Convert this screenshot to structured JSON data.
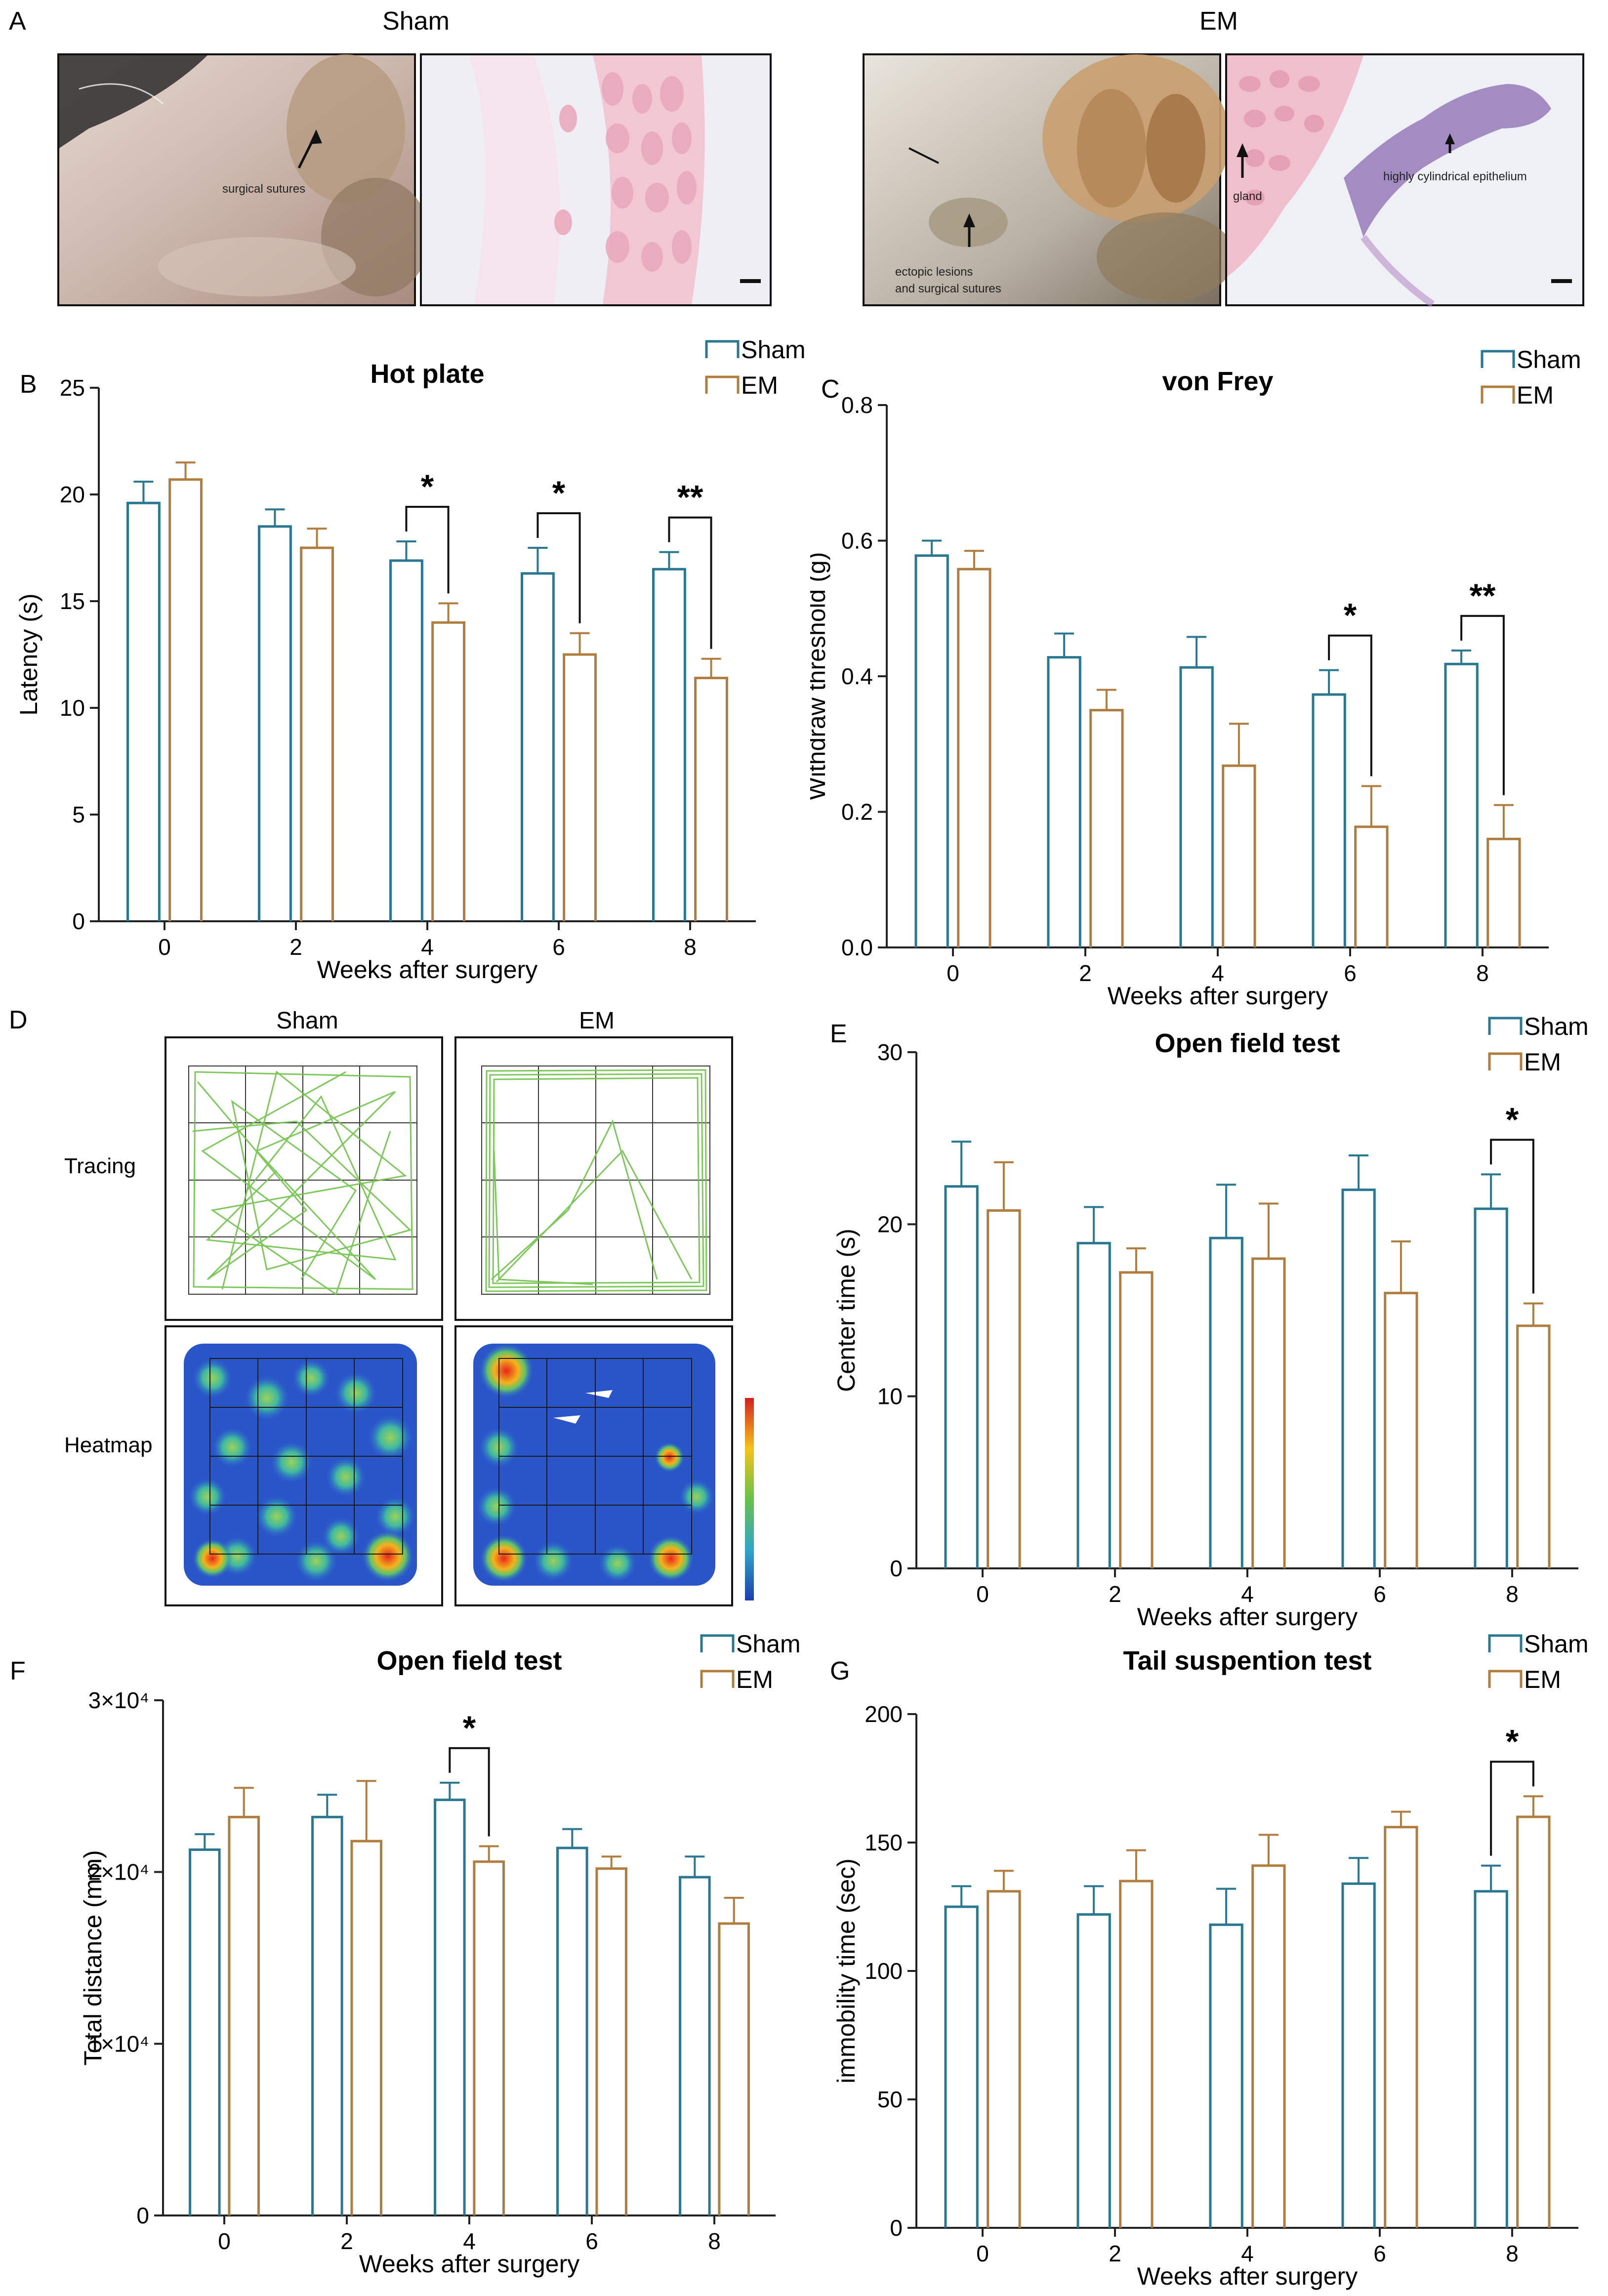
{
  "colors": {
    "sham": "#2a7790",
    "em": "#b07d3f",
    "axis": "#222222",
    "track": "#6fc24a"
  },
  "panelA": {
    "letter": "A",
    "sham_title": "Sham",
    "em_title": "EM",
    "sham_photo_label": "surgical sutures",
    "em_photo_label_1": "ectopic lesions",
    "em_photo_label_2": "and surgical sutures",
    "em_histo_gland": "gland",
    "em_histo_epithelium": "highly cylindrical epithelium"
  },
  "panelD": {
    "letter": "D",
    "col_sham": "Sham",
    "col_em": "EM",
    "row_tracing": "Tracing",
    "row_heatmap": "Heatmap"
  },
  "chart_data": [
    {
      "id": "B",
      "letter": "B",
      "type": "bar",
      "title": "Hot plate",
      "xlabel": "Weeks after surgery",
      "ylabel": "Latency (s)",
      "categories": [
        "0",
        "2",
        "4",
        "6",
        "8"
      ],
      "ylim": [
        0,
        25
      ],
      "yticks": [
        0,
        5,
        10,
        15,
        20,
        25
      ],
      "ytick_labels": [
        "0",
        "5",
        "10",
        "15",
        "20",
        "25"
      ],
      "legend": [
        "Sham",
        "EM"
      ],
      "series": [
        {
          "name": "Sham",
          "values": [
            19.6,
            18.5,
            16.9,
            16.3,
            16.5
          ],
          "errors": [
            1.0,
            0.8,
            0.9,
            1.2,
            0.8
          ]
        },
        {
          "name": "EM",
          "values": [
            20.7,
            17.5,
            14.0,
            12.5,
            11.4
          ],
          "errors": [
            0.8,
            0.9,
            0.9,
            1.0,
            0.9
          ]
        }
      ],
      "significance": [
        {
          "category_index": 2,
          "label": "*"
        },
        {
          "category_index": 3,
          "label": "*"
        },
        {
          "category_index": 4,
          "label": "**"
        }
      ]
    },
    {
      "id": "C",
      "letter": "C",
      "type": "bar",
      "title": "von Frey",
      "xlabel": "Weeks after surgery",
      "ylabel": "Withdraw threshold (g)",
      "categories": [
        "0",
        "2",
        "4",
        "6",
        "8"
      ],
      "ylim": [
        0,
        0.8
      ],
      "yticks": [
        0,
        0.2,
        0.4,
        0.6,
        0.8
      ],
      "ytick_labels": [
        "0.0",
        "0.2",
        "0.4",
        "0.6",
        "0.8"
      ],
      "legend": [
        "Sham",
        "EM"
      ],
      "series": [
        {
          "name": "Sham",
          "values": [
            0.578,
            0.428,
            0.413,
            0.373,
            0.418
          ],
          "errors": [
            0.022,
            0.035,
            0.045,
            0.036,
            0.02
          ]
        },
        {
          "name": "EM",
          "values": [
            0.558,
            0.35,
            0.268,
            0.178,
            0.16
          ],
          "errors": [
            0.027,
            0.03,
            0.062,
            0.06,
            0.05
          ]
        }
      ],
      "significance": [
        {
          "category_index": 3,
          "label": "*"
        },
        {
          "category_index": 4,
          "label": "**"
        }
      ]
    },
    {
      "id": "E",
      "letter": "E",
      "type": "bar",
      "title": "Open field test",
      "xlabel": "Weeks after surgery",
      "ylabel": "Center time (s)",
      "categories": [
        "0",
        "2",
        "4",
        "6",
        "8"
      ],
      "ylim": [
        0,
        30
      ],
      "yticks": [
        0,
        10,
        20,
        30
      ],
      "ytick_labels": [
        "0",
        "10",
        "20",
        "30"
      ],
      "legend": [
        "Sham",
        "EM"
      ],
      "series": [
        {
          "name": "Sham",
          "values": [
            22.2,
            18.9,
            19.2,
            22.0,
            20.9
          ],
          "errors": [
            2.6,
            2.1,
            3.1,
            2.0,
            2.0
          ]
        },
        {
          "name": "EM",
          "values": [
            20.8,
            17.2,
            18.0,
            16.0,
            14.1
          ],
          "errors": [
            2.8,
            1.4,
            3.2,
            3.0,
            1.3
          ]
        }
      ],
      "significance": [
        {
          "category_index": 4,
          "label": "*"
        }
      ]
    },
    {
      "id": "F",
      "letter": "F",
      "type": "bar",
      "title": "Open field test",
      "xlabel": "Weeks after surgery",
      "ylabel": "Total distance (mm)",
      "categories": [
        "0",
        "2",
        "4",
        "6",
        "8"
      ],
      "ylim": [
        0,
        30000
      ],
      "yticks": [
        0,
        10000,
        20000,
        30000
      ],
      "ytick_labels": [
        "0",
        "1×10⁴",
        "2×10⁴",
        "3×10⁴"
      ],
      "legend": [
        "Sham",
        "EM"
      ],
      "series": [
        {
          "name": "Sham",
          "values": [
            21300,
            23200,
            24200,
            21400,
            19700
          ],
          "errors": [
            900,
            1300,
            1000,
            1100,
            1200
          ]
        },
        {
          "name": "EM",
          "values": [
            23200,
            21800,
            20600,
            20200,
            17000
          ],
          "errors": [
            1700,
            3500,
            900,
            700,
            1500
          ]
        }
      ],
      "significance": [
        {
          "category_index": 2,
          "label": "*"
        }
      ]
    },
    {
      "id": "G",
      "letter": "G",
      "type": "bar",
      "title": "Tail suspention test",
      "xlabel": "Weeks after surgery",
      "ylabel": "immobility time (sec)",
      "categories": [
        "0",
        "2",
        "4",
        "6",
        "8"
      ],
      "ylim": [
        0,
        200
      ],
      "yticks": [
        0,
        50,
        100,
        150,
        200
      ],
      "ytick_labels": [
        "0",
        "50",
        "100",
        "150",
        "200"
      ],
      "legend": [
        "Sham",
        "EM"
      ],
      "series": [
        {
          "name": "Sham",
          "values": [
            125,
            122,
            118,
            134,
            131
          ],
          "errors": [
            8,
            11,
            14,
            10,
            10
          ]
        },
        {
          "name": "EM",
          "values": [
            131,
            135,
            141,
            156,
            160
          ],
          "errors": [
            8,
            12,
            12,
            6,
            8
          ]
        }
      ],
      "significance": [
        {
          "category_index": 4,
          "label": "*"
        }
      ]
    }
  ]
}
